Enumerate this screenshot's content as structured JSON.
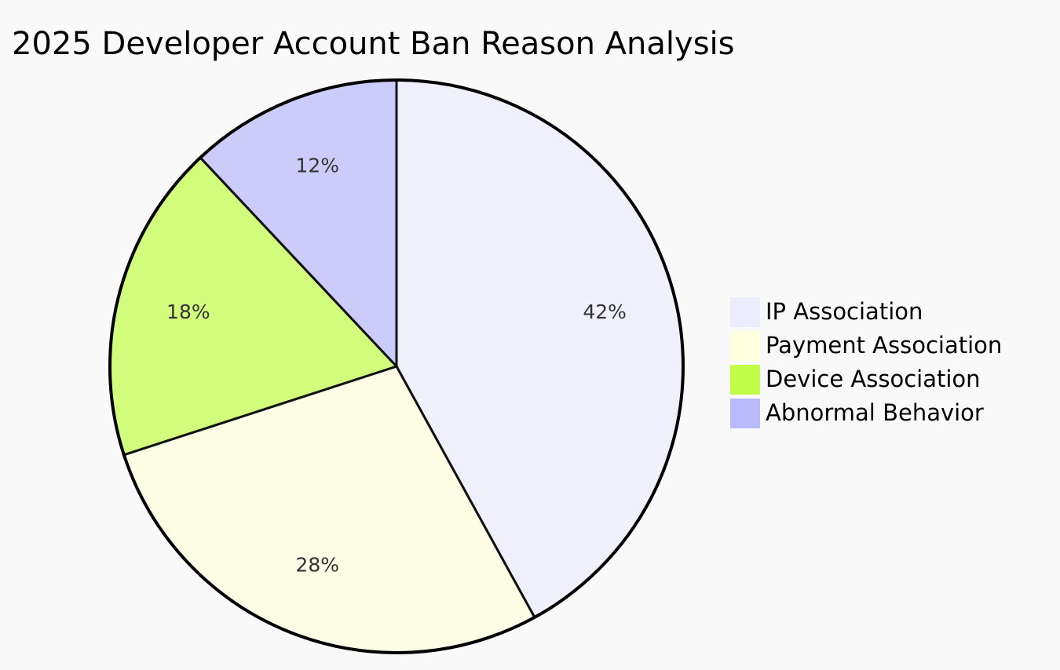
{
  "chart_data": {
    "type": "pie",
    "title": "2025 Developer Account Ban Reason Analysis",
    "categories": [
      "IP Association",
      "Payment Association",
      "Device Association",
      "Abnormal Behavior"
    ],
    "values": [
      42,
      28,
      18,
      12
    ],
    "value_labels": [
      "42%",
      "28%",
      "18%",
      "12%"
    ],
    "colors": [
      "#ececff",
      "#ffffde",
      "#c0fd47",
      "#b9b9fb"
    ]
  }
}
